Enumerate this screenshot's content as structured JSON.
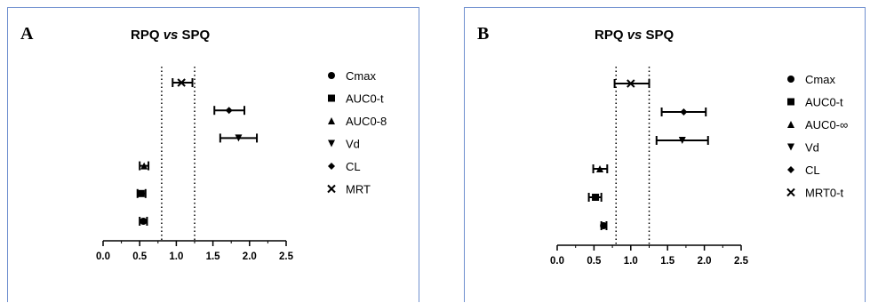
{
  "chart_data": [
    {
      "type": "scatter",
      "panel_label": "A",
      "title": "RPQ vs SPQ",
      "title_parts": [
        "RPQ ",
        "vs",
        " SPQ"
      ],
      "xlim": [
        0,
        2.5
      ],
      "x_ticks": [
        "0.0",
        "0.5",
        "1.0",
        "1.5",
        "2.0",
        "2.5"
      ],
      "reference_lines": [
        0.8,
        1.25
      ],
      "legend_position": "right",
      "series": [
        {
          "name": "Cmax",
          "marker": "circle",
          "value": 0.55,
          "ci": [
            0.5,
            0.6
          ]
        },
        {
          "name": "AUC0-t",
          "marker": "square",
          "value": 0.52,
          "ci": [
            0.47,
            0.58
          ]
        },
        {
          "name": "AUC0-8",
          "marker": "triangle-up",
          "value": 0.56,
          "ci": [
            0.5,
            0.62
          ]
        },
        {
          "name": "Vd",
          "marker": "triangle-down",
          "value": 1.85,
          "ci": [
            1.6,
            2.1
          ]
        },
        {
          "name": "CL",
          "marker": "diamond",
          "value": 1.72,
          "ci": [
            1.52,
            1.93
          ]
        },
        {
          "name": "MRT",
          "marker": "cross",
          "value": 1.07,
          "ci": [
            0.95,
            1.22
          ]
        }
      ]
    },
    {
      "type": "scatter",
      "panel_label": "B",
      "title": "RPQ vs SPQ",
      "title_parts": [
        "RPQ ",
        "vs",
        " SPQ"
      ],
      "xlim": [
        0,
        2.5
      ],
      "x_ticks": [
        "0.0",
        "0.5",
        "1.0",
        "1.5",
        "2.0",
        "2.5"
      ],
      "reference_lines": [
        0.8,
        1.25
      ],
      "legend_position": "right",
      "series": [
        {
          "name": "Cmax",
          "marker": "circle",
          "value": 0.63,
          "ci": [
            0.6,
            0.67
          ]
        },
        {
          "name": "AUC0-t",
          "marker": "square",
          "value": 0.52,
          "ci": [
            0.43,
            0.6
          ]
        },
        {
          "name": "AUC0-∞",
          "marker": "triangle-up",
          "value": 0.58,
          "ci": [
            0.49,
            0.68
          ]
        },
        {
          "name": "Vd",
          "marker": "triangle-down",
          "value": 1.7,
          "ci": [
            1.35,
            2.05
          ]
        },
        {
          "name": "CL",
          "marker": "diamond",
          "value": 1.72,
          "ci": [
            1.42,
            2.02
          ]
        },
        {
          "name": "MRT0-t",
          "marker": "cross",
          "value": 1.0,
          "ci": [
            0.78,
            1.25
          ]
        }
      ]
    }
  ]
}
